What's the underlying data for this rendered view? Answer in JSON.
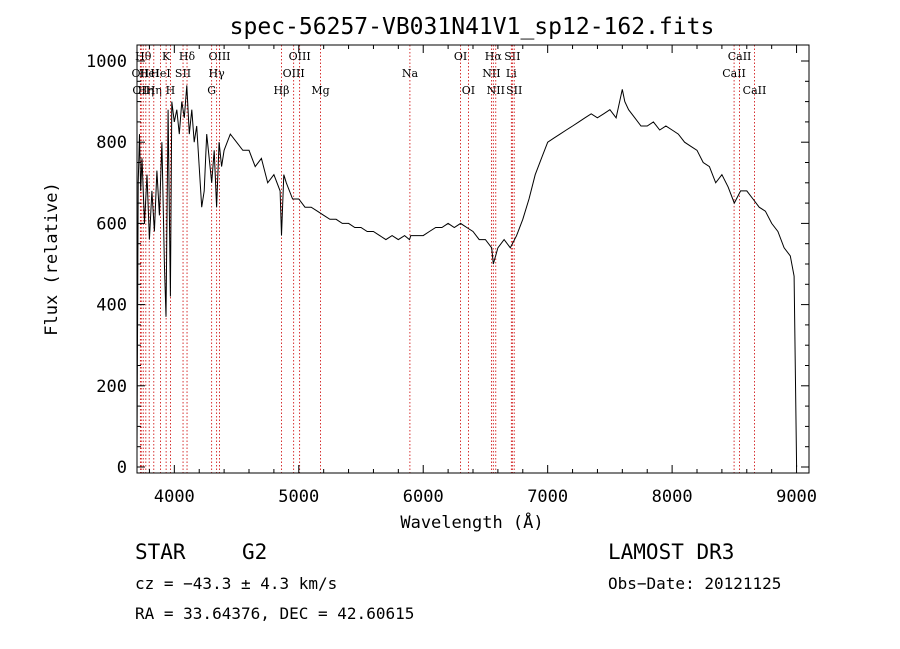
{
  "chart_data": {
    "type": "line",
    "title": "spec-56257-VB031N41V1_sp12-162.fits",
    "xlabel": "Wavelength (Å)",
    "ylabel": "Flux (relative)",
    "xlim": [
      3700,
      9100
    ],
    "ylim": [
      0,
      1000
    ],
    "x_ticks": [
      "4000",
      "5000",
      "6000",
      "7000",
      "8000",
      "9000"
    ],
    "y_ticks": [
      "0",
      "200",
      "400",
      "600",
      "800",
      "1000"
    ],
    "grid": false,
    "series": [
      {
        "x": [
          3700,
          3710,
          3720,
          3730,
          3740,
          3760,
          3780,
          3800,
          3820,
          3840,
          3860,
          3880,
          3900,
          3920,
          3933,
          3950,
          3968,
          3980,
          4000,
          4020,
          4040,
          4060,
          4080,
          4100,
          4120,
          4140,
          4160,
          4180,
          4200,
          4220,
          4240,
          4260,
          4280,
          4300,
          4320,
          4340,
          4360,
          4380,
          4400,
          4450,
          4500,
          4550,
          4600,
          4650,
          4700,
          4750,
          4800,
          4850,
          4861,
          4880,
          4900,
          4950,
          5000,
          5050,
          5100,
          5150,
          5200,
          5250,
          5300,
          5350,
          5400,
          5450,
          5500,
          5550,
          5600,
          5650,
          5700,
          5750,
          5800,
          5850,
          5890,
          5900,
          5950,
          6000,
          6050,
          6100,
          6150,
          6200,
          6250,
          6300,
          6350,
          6400,
          6450,
          6500,
          6550,
          6563,
          6600,
          6650,
          6700,
          6750,
          6800,
          6850,
          6900,
          6950,
          7000,
          7050,
          7100,
          7150,
          7200,
          7250,
          7300,
          7350,
          7400,
          7450,
          7500,
          7550,
          7600,
          7620,
          7650,
          7700,
          7750,
          7800,
          7850,
          7900,
          7950,
          8000,
          8050,
          8100,
          8150,
          8200,
          8250,
          8300,
          8350,
          8400,
          8450,
          8500,
          8550,
          8600,
          8650,
          8700,
          8750,
          8800,
          8850,
          8900,
          8950,
          8980,
          9000
        ],
        "y": [
          40,
          700,
          820,
          680,
          760,
          600,
          720,
          560,
          680,
          580,
          730,
          620,
          800,
          500,
          370,
          880,
          420,
          900,
          850,
          880,
          820,
          900,
          860,
          940,
          820,
          880,
          800,
          840,
          740,
          640,
          680,
          820,
          760,
          700,
          780,
          640,
          800,
          740,
          780,
          820,
          800,
          780,
          780,
          740,
          760,
          700,
          720,
          680,
          570,
          720,
          700,
          660,
          660,
          640,
          640,
          630,
          620,
          610,
          610,
          600,
          600,
          590,
          590,
          580,
          580,
          570,
          560,
          570,
          560,
          570,
          560,
          570,
          570,
          570,
          580,
          590,
          590,
          600,
          590,
          600,
          590,
          580,
          560,
          560,
          540,
          500,
          540,
          560,
          540,
          570,
          610,
          660,
          720,
          760,
          800,
          810,
          820,
          830,
          840,
          850,
          860,
          870,
          860,
          870,
          880,
          860,
          930,
          900,
          880,
          860,
          840,
          840,
          850,
          830,
          840,
          830,
          820,
          800,
          790,
          780,
          750,
          740,
          700,
          720,
          690,
          650,
          680,
          680,
          660,
          640,
          630,
          600,
          580,
          540,
          520,
          470,
          0
        ]
      }
    ],
    "line_markers": [
      {
        "wavelength": 3727,
        "label": "OII",
        "row": 2
      },
      {
        "wavelength": 3734,
        "label": "OII",
        "row": 3
      },
      {
        "wavelength": 3750,
        "label": "Hθ",
        "row": 1
      },
      {
        "wavelength": 3771,
        "label": "Hη",
        "row": 3
      },
      {
        "wavelength": 3798,
        "label": "HeI",
        "row": 2
      },
      {
        "wavelength": 3835,
        "label": "Hη",
        "row": 3
      },
      {
        "wavelength": 3889,
        "label": "HeI",
        "row": 2
      },
      {
        "wavelength": 3934,
        "label": "K",
        "row": 1
      },
      {
        "wavelength": 3969,
        "label": "H",
        "row": 3
      },
      {
        "wavelength": 4070,
        "label": "SII",
        "row": 2
      },
      {
        "wavelength": 4102,
        "label": "Hδ",
        "row": 1
      },
      {
        "wavelength": 4300,
        "label": "G",
        "row": 3
      },
      {
        "wavelength": 4340,
        "label": "Hγ",
        "row": 2
      },
      {
        "wavelength": 4363,
        "label": "OIII",
        "row": 1
      },
      {
        "wavelength": 4861,
        "label": "Hβ",
        "row": 3
      },
      {
        "wavelength": 4959,
        "label": "OIII",
        "row": 2
      },
      {
        "wavelength": 5007,
        "label": "OIII",
        "row": 1
      },
      {
        "wavelength": 5175,
        "label": "Mg",
        "row": 3
      },
      {
        "wavelength": 5893,
        "label": "Na",
        "row": 2
      },
      {
        "wavelength": 6300,
        "label": "OI",
        "row": 1
      },
      {
        "wavelength": 6363,
        "label": "OI",
        "row": 3
      },
      {
        "wavelength": 6548,
        "label": "NII",
        "row": 2
      },
      {
        "wavelength": 6563,
        "label": "Hα",
        "row": 1
      },
      {
        "wavelength": 6583,
        "label": "NII",
        "row": 3
      },
      {
        "wavelength": 6708,
        "label": "Li",
        "row": 2
      },
      {
        "wavelength": 6716,
        "label": "SII",
        "row": 1
      },
      {
        "wavelength": 6731,
        "label": "SII",
        "row": 3
      },
      {
        "wavelength": 8498,
        "label": "CaII",
        "row": 2
      },
      {
        "wavelength": 8542,
        "label": "CaII",
        "row": 1
      },
      {
        "wavelength": 8662,
        "label": "CaII",
        "row": 3
      }
    ],
    "marker_color": "#cc0000"
  },
  "info": {
    "class": "STAR",
    "subclass": "G2",
    "survey": "LAMOST DR3",
    "cz": "cz = −43.3 ± 4.3 km/s",
    "obs_date": "Obs−Date: 20121125",
    "coords": "RA =  33.64376, DEC =  42.60615"
  }
}
